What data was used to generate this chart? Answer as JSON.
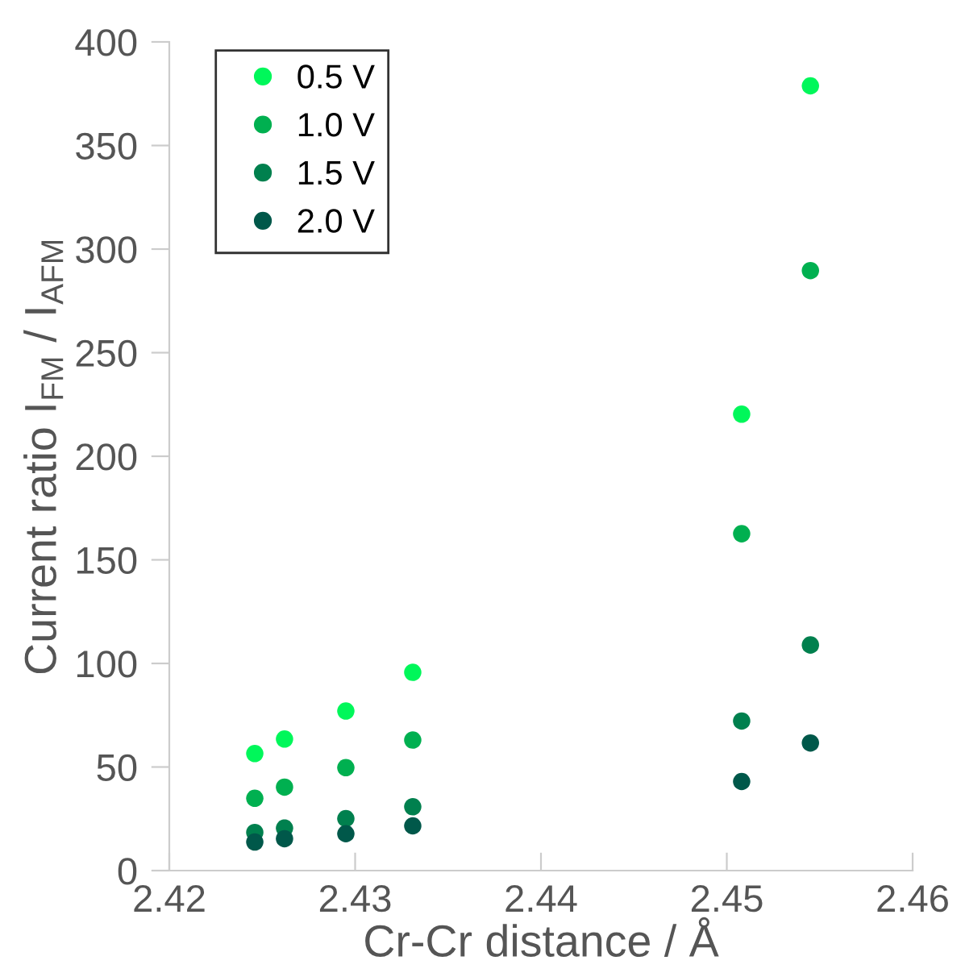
{
  "chart_data": {
    "type": "scatter",
    "xlabel": "Cr-Cr distance / Å",
    "ylabel": "Current ratio I$_{FM}$ / I$_{AFM}$",
    "x": [
      2.4246,
      2.4262,
      2.4295,
      2.4331,
      2.4508,
      2.4545
    ],
    "series": [
      {
        "name": "0.5 V",
        "color": "#00f75a",
        "values": [
          56.5,
          63.5,
          77.0,
          95.7,
          220.3,
          378.8
        ]
      },
      {
        "name": "1.0 V",
        "color": "#00b050",
        "values": [
          34.9,
          40.3,
          49.7,
          63.0,
          162.6,
          289.6
        ]
      },
      {
        "name": "1.5 V",
        "color": "#00804e",
        "values": [
          18.4,
          20.5,
          25.1,
          30.8,
          72.2,
          108.9
        ]
      },
      {
        "name": "2.0 V",
        "color": "#00584a",
        "values": [
          13.8,
          15.4,
          17.8,
          21.6,
          43.0,
          61.6
        ]
      }
    ],
    "xlim": [
      2.42,
      2.46
    ],
    "xticks": [
      2.42,
      2.43,
      2.44,
      2.45,
      2.46
    ],
    "ylim": [
      0,
      400
    ],
    "yticks": [
      0,
      50,
      100,
      150,
      200,
      250,
      300,
      350,
      400
    ],
    "grid": false,
    "legend": "top left",
    "marker": "circle"
  }
}
